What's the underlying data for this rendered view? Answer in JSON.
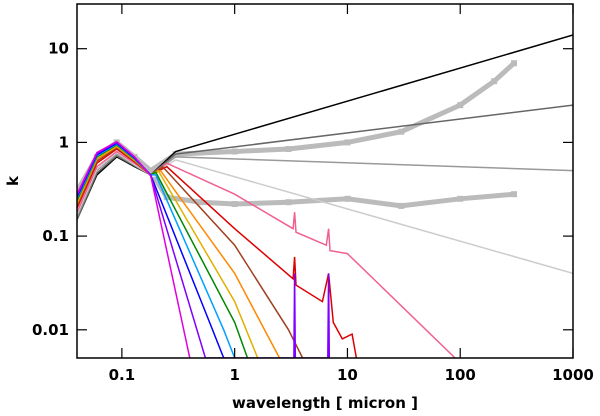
{
  "chart_data": {
    "type": "line",
    "xlabel": "wavelength [ micron ]",
    "ylabel": "k",
    "xscale": "log",
    "yscale": "log",
    "xlim": [
      0.04,
      1000
    ],
    "ylim": [
      0.005,
      30
    ],
    "xticks": [
      0.1,
      1,
      10,
      100,
      1000
    ],
    "yticks": [
      0.01,
      0.1,
      1,
      10
    ],
    "series": [
      {
        "color": "#bbbbbb",
        "marker": "square",
        "x": [
          0.04,
          0.06,
          0.09,
          0.13,
          0.18,
          0.3,
          1,
          3,
          10,
          30,
          100,
          200,
          300
        ],
        "values": [
          0.3,
          0.7,
          1.0,
          0.7,
          0.5,
          0.75,
          0.8,
          0.85,
          1.0,
          1.3,
          2.5,
          4.5,
          7
        ]
      },
      {
        "color": "#bbbbbb",
        "marker": "square",
        "x": [
          0.2,
          0.25,
          0.5,
          1,
          3,
          10,
          30,
          100,
          300
        ],
        "values": [
          0.4,
          0.26,
          0.23,
          0.22,
          0.23,
          0.25,
          0.21,
          0.25,
          0.28
        ]
      },
      {
        "color": "#000000",
        "x": [
          0.04,
          0.06,
          0.09,
          0.13,
          0.18,
          0.3,
          1000
        ],
        "values": [
          0.15,
          0.45,
          0.7,
          0.55,
          0.45,
          0.8,
          14
        ]
      },
      {
        "color": "#666666",
        "x": [
          0.04,
          0.06,
          0.09,
          0.13,
          0.18,
          0.3,
          1000
        ],
        "values": [
          0.15,
          0.47,
          0.72,
          0.56,
          0.45,
          0.75,
          2.5
        ]
      },
      {
        "color": "#999999",
        "x": [
          0.04,
          0.06,
          0.09,
          0.13,
          0.18,
          0.3,
          1000
        ],
        "values": [
          0.16,
          0.5,
          0.75,
          0.57,
          0.45,
          0.7,
          0.5
        ]
      },
      {
        "color": "#cccccc",
        "x": [
          0.04,
          0.06,
          0.09,
          0.13,
          0.18,
          0.3,
          1000
        ],
        "values": [
          0.17,
          0.52,
          0.78,
          0.58,
          0.45,
          0.65,
          0.04
        ]
      },
      {
        "color": "#f06090",
        "x": [
          0.04,
          0.06,
          0.09,
          0.13,
          0.18,
          0.25,
          1,
          3.3,
          3.4,
          3.5,
          6.5,
          6.8,
          7,
          10,
          90
        ],
        "values": [
          0.18,
          0.55,
          0.8,
          0.6,
          0.45,
          0.6,
          0.28,
          0.12,
          0.18,
          0.11,
          0.08,
          0.12,
          0.07,
          0.065,
          0.005
        ]
      },
      {
        "color": "#dd0000",
        "x": [
          0.04,
          0.06,
          0.09,
          0.13,
          0.18,
          0.25,
          1,
          3.3,
          3.4,
          3.5,
          6,
          6.8,
          7.5,
          9,
          11,
          12
        ],
        "values": [
          0.2,
          0.6,
          0.85,
          0.62,
          0.45,
          0.55,
          0.12,
          0.035,
          0.06,
          0.03,
          0.02,
          0.04,
          0.012,
          0.008,
          0.009,
          0.005
        ]
      },
      {
        "color": "#a04020",
        "x": [
          0.04,
          0.06,
          0.09,
          0.13,
          0.18,
          0.23,
          1,
          3,
          4
        ],
        "values": [
          0.21,
          0.63,
          0.88,
          0.63,
          0.45,
          0.55,
          0.08,
          0.01,
          0.005
        ]
      },
      {
        "color": "#ff8800",
        "x": [
          0.04,
          0.06,
          0.09,
          0.13,
          0.18,
          0.22,
          1,
          2.5
        ],
        "values": [
          0.22,
          0.66,
          0.9,
          0.64,
          0.45,
          0.5,
          0.04,
          0.005
        ]
      },
      {
        "color": "#e0b000",
        "x": [
          0.04,
          0.06,
          0.09,
          0.13,
          0.18,
          0.21,
          1,
          1.6
        ],
        "values": [
          0.23,
          0.68,
          0.92,
          0.65,
          0.45,
          0.5,
          0.02,
          0.005
        ]
      },
      {
        "color": "#008800",
        "x": [
          0.04,
          0.06,
          0.09,
          0.13,
          0.18,
          0.2,
          1,
          1.3
        ],
        "values": [
          0.24,
          0.7,
          0.94,
          0.66,
          0.45,
          0.48,
          0.012,
          0.005
        ]
      },
      {
        "color": "#00a0ff",
        "x": [
          0.04,
          0.06,
          0.09,
          0.13,
          0.18,
          0.2,
          0.8,
          1
        ],
        "values": [
          0.25,
          0.72,
          0.96,
          0.67,
          0.45,
          0.45,
          0.01,
          0.005
        ]
      },
      {
        "color": "#0000ff",
        "x": [
          0.04,
          0.06,
          0.09,
          0.13,
          0.18,
          0.6,
          0.8
        ],
        "values": [
          0.26,
          0.74,
          0.98,
          0.68,
          0.45,
          0.012,
          0.005
        ]
      },
      {
        "color": "#8000ff",
        "x": [
          0.04,
          0.06,
          0.09,
          0.13,
          0.18,
          0.55,
          3.35,
          3.4,
          3.45,
          6.7,
          6.8,
          6.9
        ],
        "values": [
          0.27,
          0.76,
          1.0,
          0.69,
          0.44,
          0.005,
          0.005,
          0.04,
          0.005,
          0.005,
          0.04,
          0.005
        ]
      },
      {
        "color": "#e000e0",
        "x": [
          0.04,
          0.06,
          0.09,
          0.13,
          0.18,
          0.4
        ],
        "values": [
          0.28,
          0.78,
          1.02,
          0.7,
          0.44,
          0.005
        ]
      }
    ]
  }
}
